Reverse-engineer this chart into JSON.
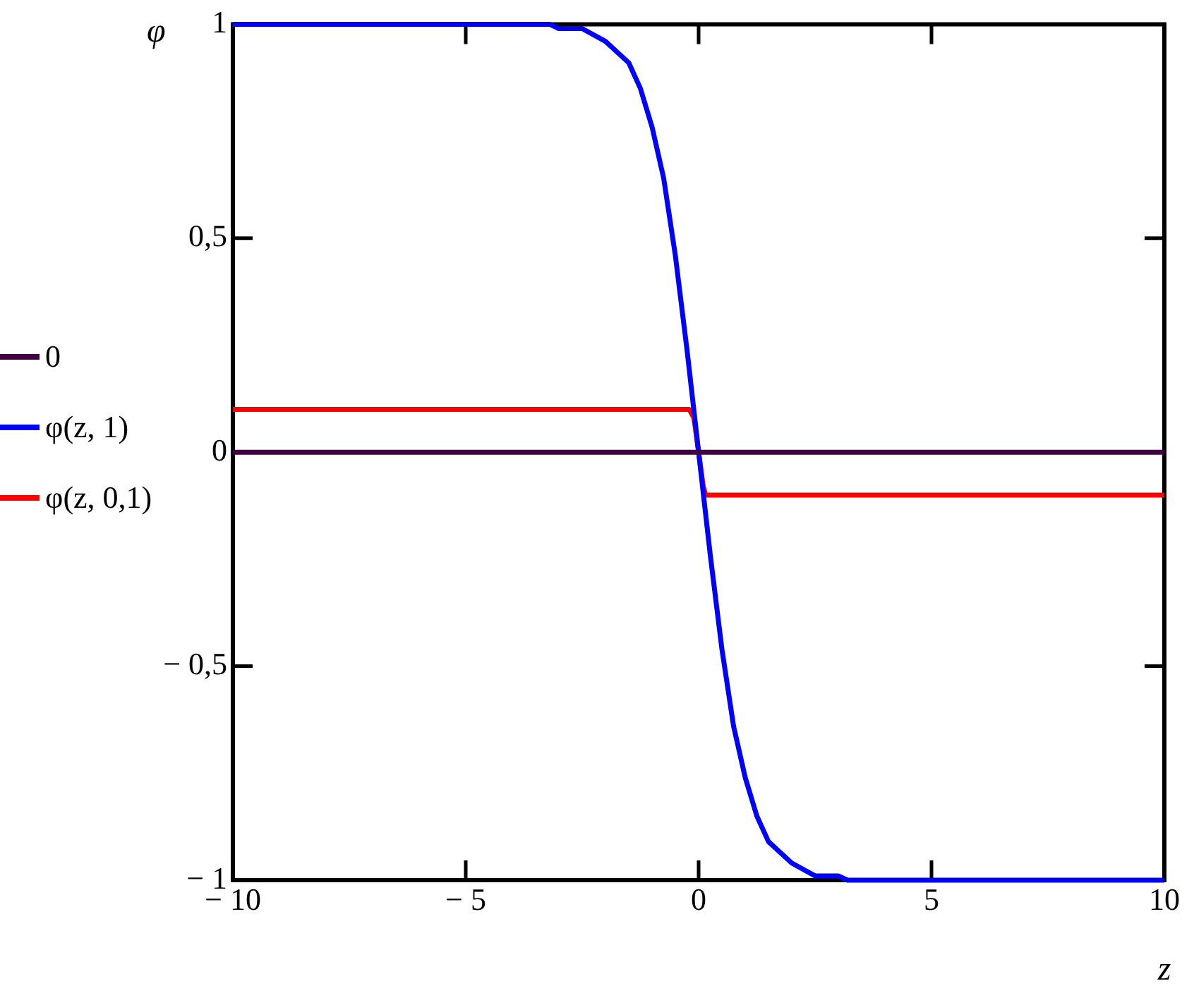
{
  "chart_data": {
    "type": "line",
    "xlabel": "z",
    "ylabel": "φ",
    "xlim": [
      -10,
      10
    ],
    "ylim": [
      -1,
      1
    ],
    "xticks": [
      {
        "value": -10,
        "label": "− 10"
      },
      {
        "value": -5,
        "label": "− 5"
      },
      0,
      5,
      10
    ],
    "yticks": [
      {
        "value": -1,
        "label": "− 1"
      },
      {
        "value": -0.5,
        "label": "− 0,5"
      },
      0,
      {
        "value": 0.5,
        "label": "0,5"
      },
      1
    ],
    "grid": false,
    "legend": "left",
    "marker": "none",
    "line_style": "solid",
    "series": [
      {
        "name": "0",
        "color": "#400040",
        "x": [
          -10,
          10
        ],
        "values": [
          0,
          0
        ]
      },
      {
        "name": "φ(z, 1)",
        "color": "#0000ff",
        "x": [
          -10,
          -3.2,
          -3,
          -2.5,
          -2,
          -1.5,
          -1.25,
          -1,
          -0.75,
          -0.5,
          -0.25,
          0,
          0.25,
          0.5,
          0.75,
          1,
          1.25,
          1.5,
          2,
          2.5,
          3,
          3.2,
          10
        ],
        "values": [
          1,
          1,
          0.99,
          0.99,
          0.96,
          0.91,
          0.85,
          0.76,
          0.64,
          0.46,
          0.24,
          0,
          -0.24,
          -0.46,
          -0.64,
          -0.76,
          -0.85,
          -0.91,
          -0.96,
          -0.99,
          -0.99,
          -1,
          -1
        ]
      },
      {
        "name": "φ(z, 0,1)",
        "color": "#ff0000",
        "x": [
          -10,
          -0.2,
          -0.1,
          0,
          0.1,
          0.15,
          10
        ],
        "values": [
          0.1,
          0.1,
          0.08,
          0,
          -0.08,
          -0.1,
          -0.1
        ]
      }
    ]
  }
}
